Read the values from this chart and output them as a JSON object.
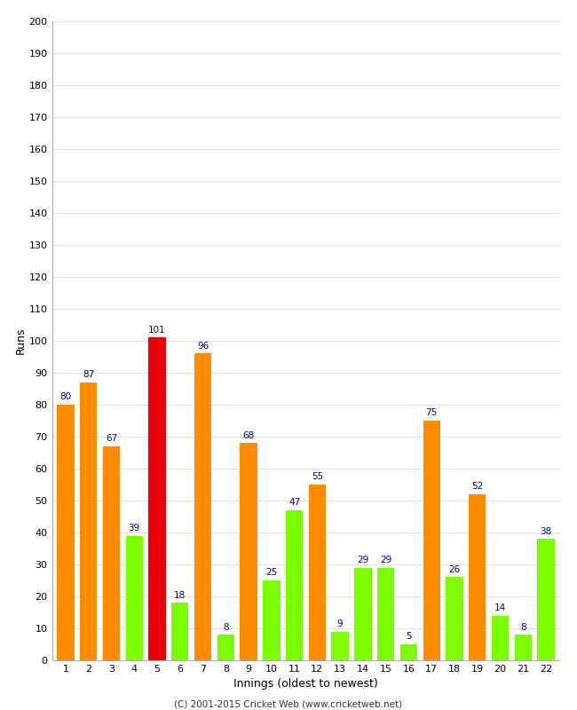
{
  "innings": [
    1,
    2,
    3,
    4,
    5,
    6,
    7,
    8,
    9,
    10,
    11,
    12,
    13,
    14,
    15,
    16,
    17,
    18,
    19,
    20,
    21,
    22
  ],
  "values": [
    80,
    87,
    67,
    39,
    101,
    18,
    96,
    8,
    68,
    25,
    47,
    55,
    9,
    29,
    29,
    5,
    75,
    26,
    52,
    14,
    8,
    38
  ],
  "colors": [
    "#ff8c00",
    "#ff8c00",
    "#ff8c00",
    "#7cfc00",
    "#e8000a",
    "#7cfc00",
    "#ff8c00",
    "#7cfc00",
    "#ff8c00",
    "#7cfc00",
    "#7cfc00",
    "#ff8c00",
    "#7cfc00",
    "#7cfc00",
    "#7cfc00",
    "#7cfc00",
    "#ff8c00",
    "#7cfc00",
    "#ff8c00",
    "#7cfc00",
    "#7cfc00",
    "#7cfc00"
  ],
  "label_color": "#00008b",
  "xlabel": "Innings (oldest to newest)",
  "ylabel": "Runs",
  "ylim": [
    0,
    200
  ],
  "yticks": [
    0,
    10,
    20,
    30,
    40,
    50,
    60,
    70,
    80,
    90,
    100,
    110,
    120,
    130,
    140,
    150,
    160,
    170,
    180,
    190,
    200
  ],
  "background_color": "#ffffff",
  "grid_color": "#e0e0e0",
  "footer": "(C) 2001-2015 Cricket Web (www.cricketweb.net)"
}
